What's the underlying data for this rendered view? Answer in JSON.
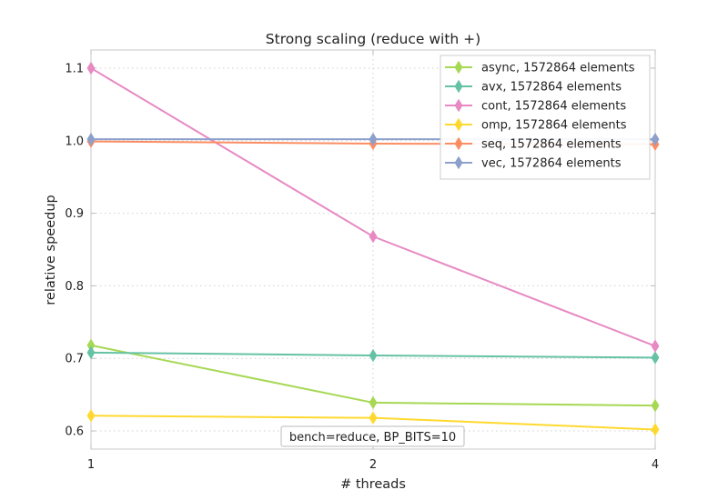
{
  "chart_data": {
    "type": "line",
    "title": "Strong scaling (reduce with +)",
    "xlabel": "# threads",
    "ylabel": "relative speedup",
    "x": [
      1,
      2,
      4
    ],
    "xticks": [
      "1",
      "2",
      "4"
    ],
    "xlim": [
      1,
      4
    ],
    "ylim": [
      0.575,
      1.125
    ],
    "yticks": [
      0.6,
      0.7,
      0.8,
      0.9,
      1.0,
      1.1
    ],
    "ytick_labels": [
      "0.6",
      "0.7",
      "0.8",
      "0.9",
      "1.0",
      "1.1"
    ],
    "grid": true,
    "legend_position": "top-right",
    "annotation": "bench=reduce, BP_BITS=10",
    "series": [
      {
        "name": "async, 1572864 elements",
        "color": "#a6d854",
        "values": [
          0.718,
          0.639,
          0.635
        ]
      },
      {
        "name": "avx, 1572864 elements",
        "color": "#66c2a5",
        "values": [
          0.708,
          0.704,
          0.701
        ]
      },
      {
        "name": "cont, 1572864 elements",
        "color": "#e78ac3",
        "values": [
          1.1,
          0.868,
          0.717
        ]
      },
      {
        "name": "omp, 1572864 elements",
        "color": "#ffd92f",
        "values": [
          0.621,
          0.618,
          0.602
        ]
      },
      {
        "name": "seq, 1572864 elements",
        "color": "#fc8d62",
        "values": [
          0.999,
          0.996,
          0.995
        ]
      },
      {
        "name": "vec, 1572864 elements",
        "color": "#8da0cb",
        "values": [
          1.002,
          1.002,
          1.002
        ]
      }
    ]
  }
}
